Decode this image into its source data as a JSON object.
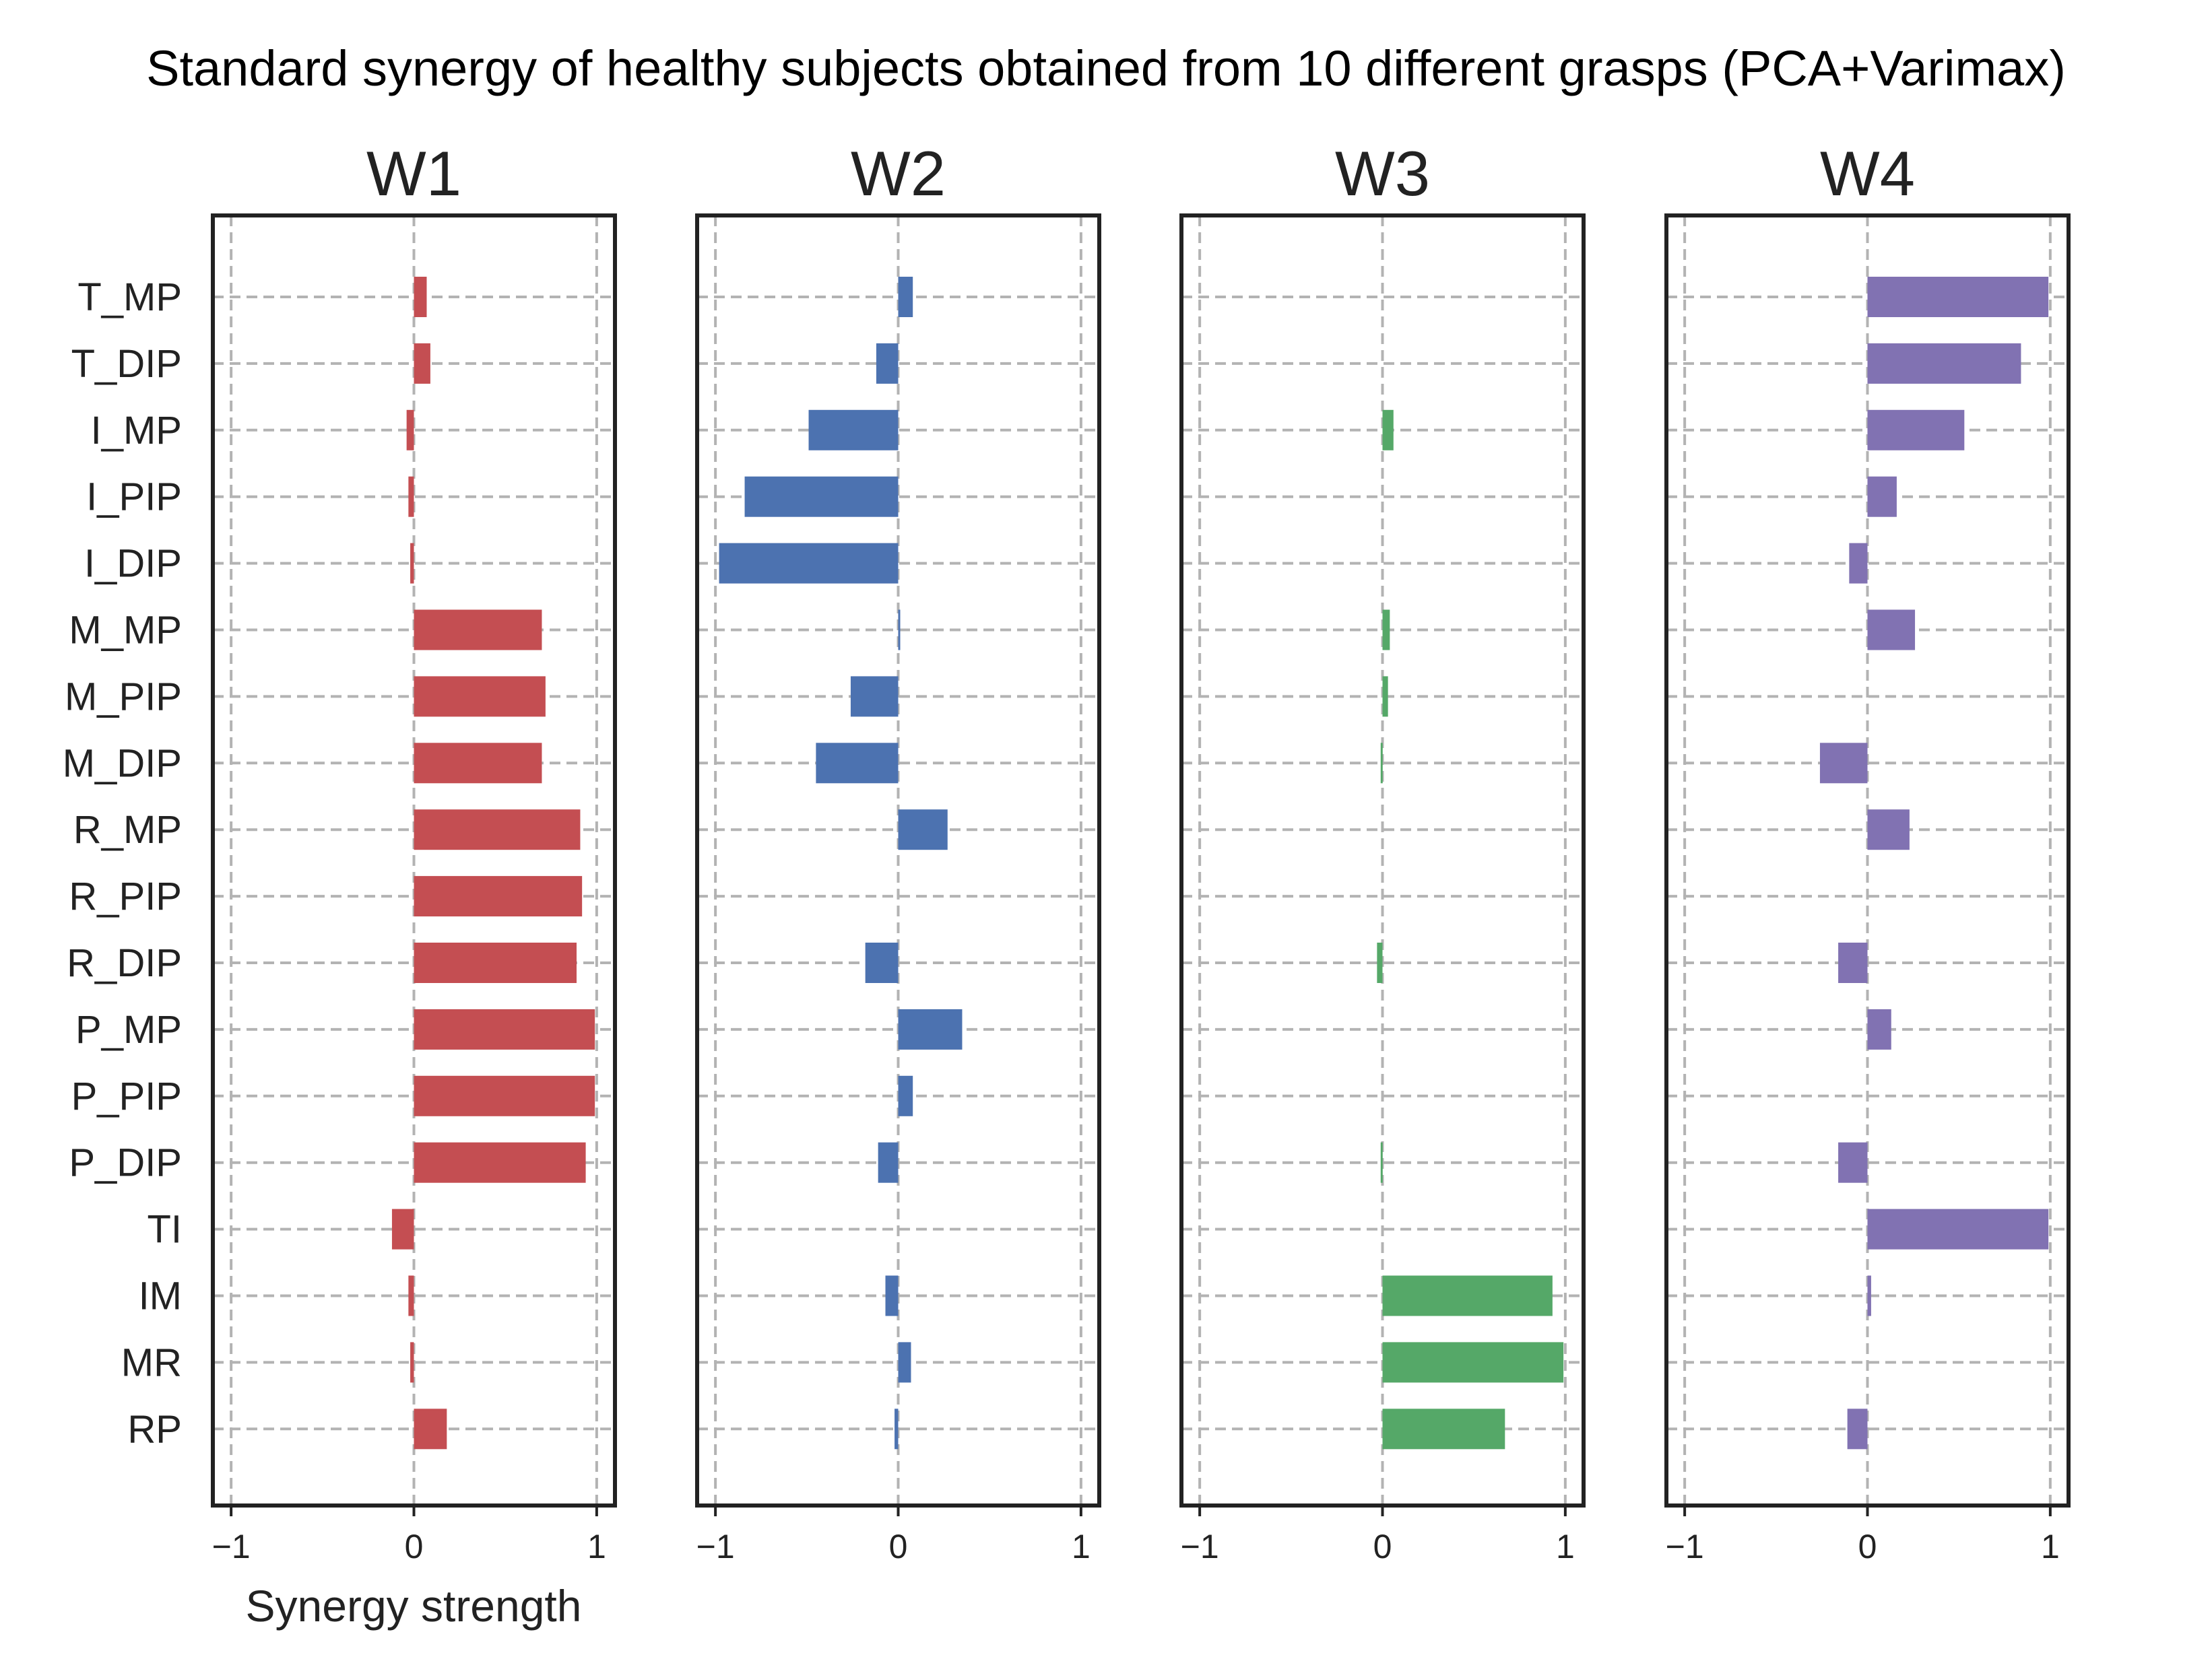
{
  "chart_data": {
    "type": "bar",
    "orientation": "horizontal",
    "title": "Standard synergy of healthy subjects obtained from 10 different grasps (PCA+Varimax)",
    "xlabel": "Synergy strength",
    "ylabel": "",
    "xlim": [
      -1.1,
      1.1
    ],
    "xticks": [
      -1,
      0,
      1
    ],
    "xtick_labels": [
      "−1",
      "0",
      "1"
    ],
    "grid": true,
    "categories": [
      "T_MP",
      "T_DIP",
      "I_MP",
      "I_PIP",
      "I_DIP",
      "M_MP",
      "M_PIP",
      "M_DIP",
      "R_MP",
      "R_PIP",
      "R_DIP",
      "P_MP",
      "P_PIP",
      "P_DIP",
      "TI",
      "IM",
      "MR",
      "RP"
    ],
    "series": [
      {
        "name": "W1",
        "color": "#c44e52",
        "values": [
          0.07,
          0.09,
          -0.04,
          -0.03,
          -0.02,
          0.7,
          0.72,
          0.7,
          0.91,
          0.92,
          0.89,
          0.99,
          0.99,
          0.94,
          -0.12,
          -0.03,
          -0.02,
          0.18
        ]
      },
      {
        "name": "W2",
        "color": "#4c72b0",
        "values": [
          0.08,
          -0.12,
          -0.49,
          -0.84,
          -0.98,
          0.01,
          -0.26,
          -0.45,
          0.27,
          0.0,
          -0.18,
          0.35,
          0.08,
          -0.11,
          0.0,
          -0.07,
          0.07,
          -0.02
        ]
      },
      {
        "name": "W3",
        "color": "#55a868",
        "values": [
          0.0,
          0.0,
          0.06,
          0.0,
          0.0,
          0.04,
          0.03,
          -0.01,
          0.0,
          0.0,
          -0.03,
          0.0,
          0.0,
          -0.01,
          0.0,
          0.93,
          0.99,
          0.67
        ]
      },
      {
        "name": "W4",
        "color": "#8172b2",
        "values": [
          0.99,
          0.84,
          0.53,
          0.16,
          -0.1,
          0.26,
          0.0,
          -0.26,
          0.23,
          0.0,
          -0.16,
          0.13,
          0.0,
          -0.16,
          0.99,
          0.02,
          0.0,
          -0.11
        ]
      }
    ]
  }
}
